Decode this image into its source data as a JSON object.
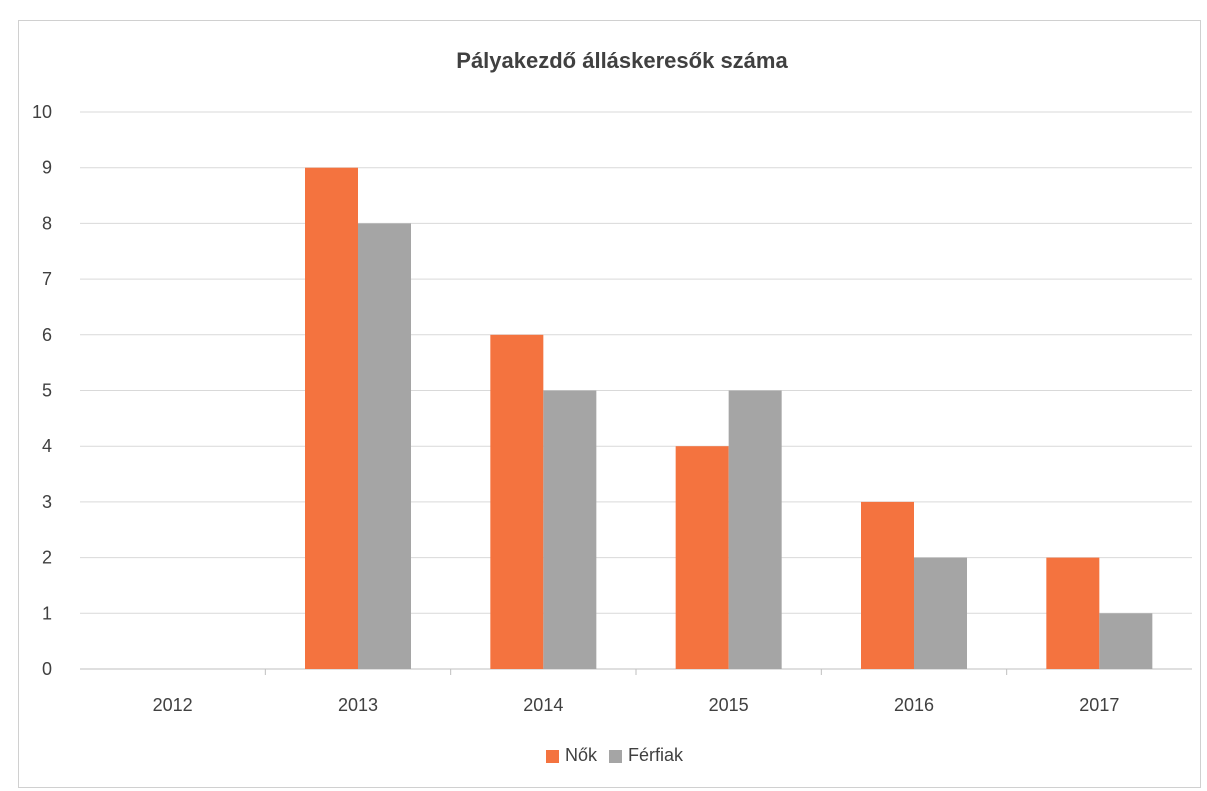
{
  "chart_data": {
    "type": "bar",
    "title": "Pályakezdő álláskeresők száma",
    "xlabel": "",
    "ylabel": "",
    "categories": [
      "2012",
      "2013",
      "2014",
      "2015",
      "2016",
      "2017"
    ],
    "series": [
      {
        "name": "Nők",
        "color": "#F4733F",
        "values": [
          0,
          9,
          6,
          4,
          3,
          2
        ]
      },
      {
        "name": "Férfiak",
        "color": "#A5A5A5",
        "values": [
          0,
          8,
          5,
          5,
          2,
          1
        ]
      }
    ],
    "ylim": [
      0,
      10
    ],
    "yticks": [
      "0",
      "1",
      "2",
      "3",
      "4",
      "5",
      "6",
      "7",
      "8",
      "9",
      "10"
    ],
    "grid": true,
    "legend_position": "bottom"
  }
}
